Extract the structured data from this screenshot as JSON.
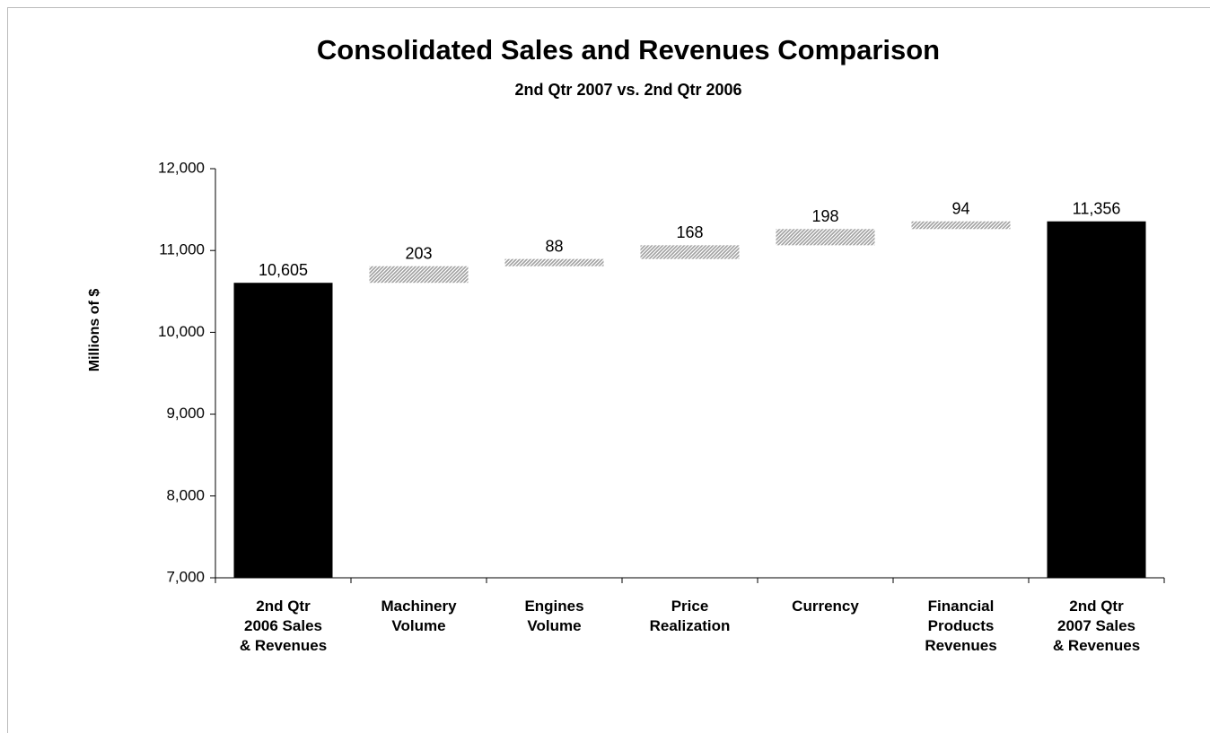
{
  "chart_data": {
    "type": "waterfall",
    "title": "Consolidated Sales and Revenues Comparison",
    "subtitle": "2nd Qtr 2007 vs. 2nd Qtr 2006",
    "y_label": "Millions of $",
    "categories": [
      "2nd Qtr\n2006 Sales\n& Revenues",
      "Machinery\nVolume",
      "Engines\nVolume",
      "Price\nRealization",
      "Currency",
      "Financial\nProducts\nRevenues",
      "2nd Qtr\n2007 Sales\n& Revenues"
    ],
    "values": [
      10605,
      203,
      88,
      168,
      198,
      94,
      11356
    ],
    "value_labels": [
      "10,605",
      "203",
      "88",
      "168",
      "198",
      "94",
      "11,356"
    ],
    "measure": [
      "absolute",
      "relative",
      "relative",
      "relative",
      "relative",
      "relative",
      "absolute"
    ],
    "total_color": "#000000",
    "delta_color": "#a0a0a0",
    "ylim": [
      7000,
      12000
    ],
    "yticks": [
      {
        "value": 7000,
        "label": "7,000"
      },
      {
        "value": 8000,
        "label": "8,000"
      },
      {
        "value": 9000,
        "label": "9,000"
      },
      {
        "value": 10000,
        "label": "10,000"
      },
      {
        "value": 11000,
        "label": "11,000"
      },
      {
        "value": 12000,
        "label": "12,000"
      }
    ],
    "grid": false
  }
}
